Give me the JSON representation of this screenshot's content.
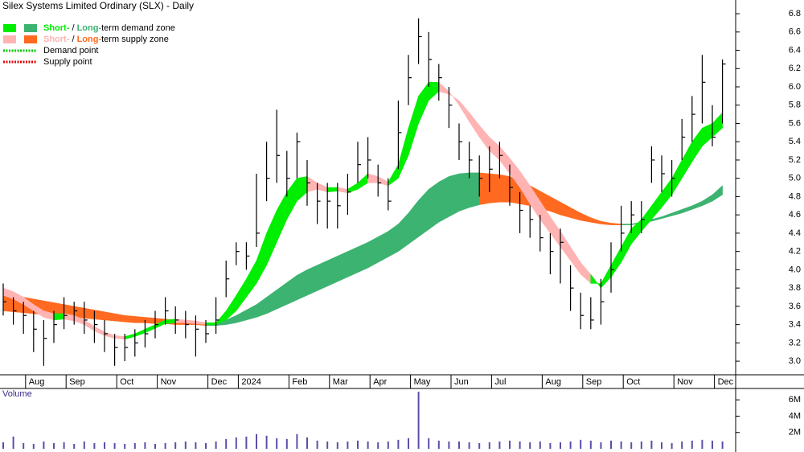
{
  "chart_data": {
    "type": "ohlc-zones",
    "title": "Silex Systems Limited Ordinary (SLX) - Daily",
    "legend": [
      {
        "parts": [
          "Short-",
          " / ",
          "Long-",
          "term demand zone"
        ],
        "colors": [
          "#00ee00",
          "#3cb371"
        ]
      },
      {
        "parts": [
          "Short-",
          " / ",
          "Long-",
          "term supply zone"
        ],
        "colors": [
          "#ffb3b3",
          "#ff6a20"
        ]
      },
      {
        "parts": [
          "Demand point"
        ],
        "colors": [
          "#00cc00"
        ]
      },
      {
        "parts": [
          "Supply point"
        ],
        "colors": [
          "#dd0000"
        ]
      }
    ],
    "categories": [
      null,
      null,
      null,
      "Aug",
      null,
      null,
      null,
      "Sep",
      null,
      null,
      null,
      null,
      "Oct",
      null,
      null,
      null,
      "Nov",
      null,
      null,
      null,
      null,
      "Dec",
      null,
      null,
      "2024",
      null,
      null,
      null,
      null,
      "Feb",
      null,
      null,
      null,
      "Mar",
      null,
      null,
      null,
      "Apr",
      null,
      null,
      null,
      "May",
      null,
      null,
      null,
      "Jun",
      null,
      null,
      null,
      "Jul",
      null,
      null,
      null,
      null,
      "Aug",
      null,
      null,
      null,
      "Sep",
      null,
      null,
      null,
      "Oct",
      null,
      null,
      null,
      null,
      "Nov",
      null,
      null,
      null,
      "Dec"
    ],
    "high": [
      3.85,
      3.7,
      3.65,
      3.55,
      3.45,
      3.55,
      3.7,
      3.65,
      3.65,
      3.55,
      3.45,
      3.3,
      3.3,
      3.35,
      3.45,
      3.55,
      3.7,
      3.6,
      3.55,
      3.5,
      3.45,
      3.7,
      4.1,
      4.3,
      4.3,
      5.05,
      5.4,
      5.75,
      5.3,
      5.5,
      5.2,
      4.95,
      4.95,
      4.95,
      5.05,
      5.4,
      5.45,
      5.15,
      5.0,
      5.85,
      6.35,
      6.75,
      6.6,
      6.25,
      6.0,
      5.6,
      5.4,
      5.25,
      5.35,
      5.4,
      5.15,
      4.85,
      4.7,
      4.6,
      4.4,
      4.45,
      4.05,
      3.75,
      3.7,
      3.9,
      4.3,
      4.7,
      4.75,
      4.75,
      5.35,
      5.25,
      5.2,
      5.65,
      5.9,
      6.35,
      5.8,
      6.3
    ],
    "low": [
      3.5,
      3.4,
      3.3,
      3.1,
      2.95,
      3.2,
      3.35,
      3.4,
      3.3,
      3.2,
      3.1,
      2.95,
      3.0,
      3.05,
      3.15,
      3.25,
      3.4,
      3.3,
      3.25,
      3.05,
      3.2,
      3.3,
      3.7,
      4.05,
      4.0,
      4.25,
      4.75,
      4.95,
      4.8,
      5.0,
      4.7,
      4.5,
      4.45,
      4.45,
      4.6,
      4.95,
      5.0,
      4.8,
      4.65,
      5.1,
      5.8,
      6.25,
      6.0,
      5.85,
      5.55,
      5.2,
      5.0,
      4.8,
      4.85,
      5.0,
      4.7,
      4.4,
      4.35,
      4.2,
      3.95,
      3.85,
      3.55,
      3.35,
      3.35,
      3.4,
      3.75,
      4.2,
      4.4,
      4.4,
      4.95,
      4.85,
      4.8,
      5.2,
      5.4,
      5.6,
      5.35,
      5.6
    ],
    "close": [
      3.65,
      3.55,
      3.5,
      3.35,
      3.25,
      3.4,
      3.5,
      3.55,
      3.45,
      3.4,
      3.3,
      3.15,
      3.15,
      3.2,
      3.3,
      3.4,
      3.55,
      3.45,
      3.4,
      3.35,
      3.3,
      3.45,
      3.9,
      4.2,
      4.15,
      4.4,
      5.0,
      5.25,
      5.0,
      5.4,
      4.95,
      4.75,
      4.75,
      4.7,
      4.85,
      5.15,
      5.2,
      4.95,
      4.75,
      5.5,
      6.1,
      6.55,
      6.3,
      6.1,
      5.8,
      5.4,
      5.2,
      5.0,
      5.1,
      5.25,
      4.9,
      4.65,
      4.55,
      4.35,
      4.2,
      4.3,
      3.8,
      3.5,
      3.45,
      3.65,
      4.0,
      4.4,
      4.6,
      4.55,
      5.2,
      5.05,
      5.0,
      5.45,
      5.7,
      6.05,
      5.45,
      6.25
    ],
    "short_upper": [
      3.8,
      3.76,
      3.7,
      3.62,
      3.55,
      3.52,
      3.52,
      3.5,
      3.45,
      3.38,
      3.32,
      3.28,
      3.27,
      3.3,
      3.35,
      3.4,
      3.45,
      3.46,
      3.45,
      3.44,
      3.42,
      3.42,
      3.55,
      3.72,
      3.9,
      4.1,
      4.4,
      4.65,
      4.85,
      5.0,
      5.02,
      4.95,
      4.9,
      4.9,
      4.88,
      4.95,
      5.05,
      5.02,
      4.96,
      5.15,
      5.55,
      5.9,
      6.05,
      6.05,
      5.95,
      5.8,
      5.62,
      5.45,
      5.3,
      5.2,
      5.05,
      4.9,
      4.72,
      4.55,
      4.4,
      4.25,
      4.1,
      3.95,
      3.85,
      3.85,
      4.05,
      4.25,
      4.45,
      4.55,
      4.7,
      4.85,
      5.0,
      5.2,
      5.4,
      5.55,
      5.6,
      5.72
    ],
    "short_lower": [
      3.72,
      3.68,
      3.62,
      3.55,
      3.48,
      3.45,
      3.46,
      3.44,
      3.4,
      3.33,
      3.28,
      3.25,
      3.24,
      3.27,
      3.31,
      3.36,
      3.41,
      3.42,
      3.42,
      3.41,
      3.4,
      3.4,
      3.45,
      3.55,
      3.7,
      3.85,
      4.05,
      4.3,
      4.55,
      4.75,
      4.85,
      4.88,
      4.85,
      4.86,
      4.84,
      4.88,
      4.95,
      4.95,
      4.92,
      5.0,
      5.25,
      5.6,
      5.85,
      5.95,
      5.92,
      5.85,
      5.72,
      5.58,
      5.45,
      5.35,
      5.22,
      5.08,
      4.92,
      4.75,
      4.58,
      4.42,
      4.25,
      4.08,
      3.95,
      3.8,
      3.92,
      4.08,
      4.28,
      4.42,
      4.55,
      4.68,
      4.82,
      5.0,
      5.18,
      5.35,
      5.45,
      5.55
    ],
    "long_upper": [
      3.75,
      3.72,
      3.7,
      3.68,
      3.66,
      3.64,
      3.62,
      3.6,
      3.58,
      3.56,
      3.54,
      3.52,
      3.5,
      3.49,
      3.48,
      3.47,
      3.46,
      3.45,
      3.44,
      3.43,
      3.42,
      3.42,
      3.45,
      3.5,
      3.56,
      3.62,
      3.7,
      3.78,
      3.86,
      3.94,
      4.0,
      4.05,
      4.1,
      4.15,
      4.2,
      4.25,
      4.3,
      4.36,
      4.42,
      4.5,
      4.62,
      4.76,
      4.88,
      4.96,
      5.02,
      5.05,
      5.06,
      5.06,
      5.05,
      5.04,
      5.02,
      4.98,
      4.92,
      4.86,
      4.8,
      4.74,
      4.68,
      4.62,
      4.57,
      4.53,
      4.51,
      4.5,
      4.5,
      4.52,
      4.55,
      4.58,
      4.62,
      4.66,
      4.7,
      4.75,
      4.82,
      4.92
    ],
    "long_lower": [
      3.55,
      3.54,
      3.53,
      3.52,
      3.51,
      3.5,
      3.49,
      3.48,
      3.47,
      3.46,
      3.45,
      3.44,
      3.43,
      3.42,
      3.42,
      3.41,
      3.41,
      3.4,
      3.4,
      3.4,
      3.39,
      3.39,
      3.4,
      3.42,
      3.45,
      3.48,
      3.52,
      3.57,
      3.62,
      3.67,
      3.72,
      3.77,
      3.82,
      3.87,
      3.92,
      3.97,
      4.02,
      4.08,
      4.14,
      4.2,
      4.28,
      4.36,
      4.44,
      4.52,
      4.58,
      4.64,
      4.68,
      4.71,
      4.73,
      4.74,
      4.74,
      4.72,
      4.7,
      4.67,
      4.64,
      4.6,
      4.57,
      4.54,
      4.52,
      4.5,
      4.49,
      4.49,
      4.49,
      4.51,
      4.53,
      4.56,
      4.59,
      4.62,
      4.66,
      4.7,
      4.75,
      4.82
    ],
    "bar_color": "#000000",
    "ylim": [
      2.86,
      6.95
    ],
    "yticks": [
      {
        "value": 3,
        "label": "3.0"
      },
      {
        "value": 3.2,
        "label": "3.2"
      },
      {
        "value": 3.4,
        "label": "3.4"
      },
      {
        "value": 3.6,
        "label": "3.6"
      },
      {
        "value": 3.8,
        "label": "3.8"
      },
      {
        "value": 4,
        "label": "4.0"
      },
      {
        "value": 4.2,
        "label": "4.2"
      },
      {
        "value": 4.4,
        "label": "4.4"
      },
      {
        "value": 4.6,
        "label": "4.6"
      },
      {
        "value": 4.8,
        "label": "4.8"
      },
      {
        "value": 5,
        "label": "5.0"
      },
      {
        "value": 5.2,
        "label": "5.2"
      },
      {
        "value": 5.4,
        "label": "5.4"
      },
      {
        "value": 5.6,
        "label": "5.6"
      },
      {
        "value": 5.8,
        "label": "5.8"
      },
      {
        "value": 6,
        "label": "6.0"
      },
      {
        "value": 6.2,
        "label": "6.2"
      },
      {
        "value": 6.4,
        "label": "6.4"
      },
      {
        "value": 6.6,
        "label": "6.6"
      },
      {
        "value": 6.8,
        "label": "6.8"
      }
    ],
    "volume_label": "Volume",
    "volume_color": "#5b4ea8",
    "volume": [
      800000,
      1500000,
      700000,
      600000,
      900000,
      700000,
      800000,
      600000,
      900000,
      700000,
      800000,
      700000,
      600000,
      700000,
      800000,
      600000,
      700000,
      800000,
      900000,
      800000,
      700000,
      900000,
      1200000,
      1400000,
      1500000,
      1800000,
      1600000,
      1300000,
      1200000,
      1800000,
      1400000,
      1000000,
      900000,
      800000,
      900000,
      1000000,
      900000,
      800000,
      900000,
      1100000,
      1300000,
      7000000,
      1300000,
      1000000,
      900000,
      900000,
      800000,
      700000,
      800000,
      900000,
      1000000,
      900000,
      800000,
      900000,
      700000,
      800000,
      900000,
      1100000,
      1000000,
      800000,
      1000000,
      900000,
      800000,
      900000,
      1000000,
      800000,
      700000,
      900000,
      1000000,
      1100000,
      1000000,
      900000
    ],
    "y2lim": [
      0,
      7000000
    ],
    "y2ticks": [
      {
        "value": 2000000,
        "label": "2M"
      },
      {
        "value": 4000000,
        "label": "4M"
      },
      {
        "value": 6000000,
        "label": "6M"
      }
    ]
  }
}
